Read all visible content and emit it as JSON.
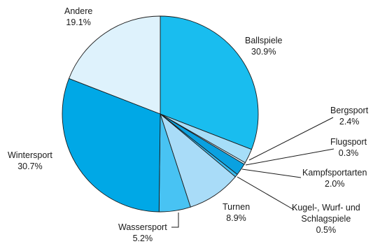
{
  "chart_data": {
    "type": "pie",
    "title": "",
    "slices": [
      {
        "label": "Ballspiele",
        "value": 30.9,
        "value_label": "30.9%",
        "color": "#19bdef"
      },
      {
        "label": "Bergsport",
        "value": 2.4,
        "value_label": "2.4%",
        "color": "#a6def8"
      },
      {
        "label": "Flugsport",
        "value": 0.3,
        "value_label": "0.3%",
        "color": "#def2fc"
      },
      {
        "label": "Kampfsportarten",
        "value": 2.0,
        "value_label": "2.0%",
        "color": "#0aa1e0"
      },
      {
        "label": "Kugel-, Wurf- und",
        "label_line2": "Schlagspiele",
        "value": 0.5,
        "value_label": "0.5%",
        "color": "#3bbcef"
      },
      {
        "label": "Turnen",
        "value": 8.9,
        "value_label": "8.9%",
        "color": "#a9dcf8"
      },
      {
        "label": "Wassersport",
        "value": 5.2,
        "value_label": "5.2%",
        "color": "#48c3f3"
      },
      {
        "label": "Wintersport",
        "value": 30.7,
        "value_label": "30.7%",
        "color": "#00a8e6"
      },
      {
        "label": "Andere",
        "value": 19.1,
        "value_label": "19.1%",
        "color": "#def2fc"
      }
    ]
  }
}
